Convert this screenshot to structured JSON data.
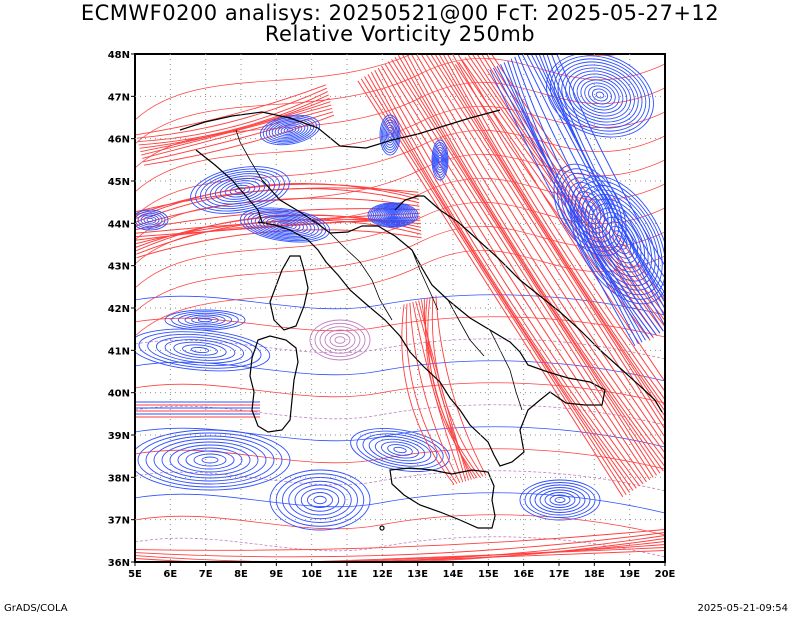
{
  "title": {
    "line1": "ECMWF0200 analisys: 20250521@00 FcT: 2025-05-27+12",
    "line2": "Relative Vorticity 250mb"
  },
  "axes": {
    "lon_labels": [
      "5E",
      "6E",
      "7E",
      "8E",
      "9E",
      "10E",
      "11E",
      "12E",
      "13E",
      "14E",
      "15E",
      "16E",
      "17E",
      "18E",
      "19E",
      "20E"
    ],
    "lat_labels": [
      "36N",
      "37N",
      "38N",
      "39N",
      "40N",
      "41N",
      "42N",
      "43N",
      "44N",
      "45N",
      "46N",
      "47N",
      "48N"
    ],
    "lon_range": [
      5,
      20
    ],
    "lat_range": [
      36,
      48
    ],
    "grid": "dotted"
  },
  "colors": {
    "positive": "#ff4040",
    "negative": "#3050ff",
    "zero": "#c080c0",
    "coast": "#000000",
    "grid": "#909090"
  },
  "footer": {
    "left": "GrADS/COLA",
    "right": "2025-05-21-09:54"
  }
}
